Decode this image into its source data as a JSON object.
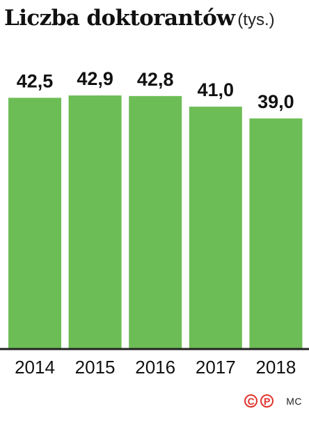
{
  "title": "Liczba doktorantów",
  "unit": "(tys.)",
  "chart_data": {
    "type": "bar",
    "title": "Liczba doktorantów",
    "subtitle": "(tys.)",
    "categories": [
      "2014",
      "2015",
      "2016",
      "2017",
      "2018"
    ],
    "values": [
      42.5,
      42.9,
      42.8,
      41.0,
      39.0
    ],
    "value_labels": [
      "42,5",
      "42,9",
      "42,8",
      "41,0",
      "39,0"
    ],
    "xlabel": "",
    "ylabel": "",
    "ylim": [
      0,
      42.9
    ],
    "grid": false,
    "bar_color": "#6dbd56"
  },
  "footer": {
    "badge_c": "C",
    "badge_p": "P",
    "author": "MC"
  },
  "colors": {
    "accent_red": "#e0332c",
    "baseline": "#222222"
  }
}
